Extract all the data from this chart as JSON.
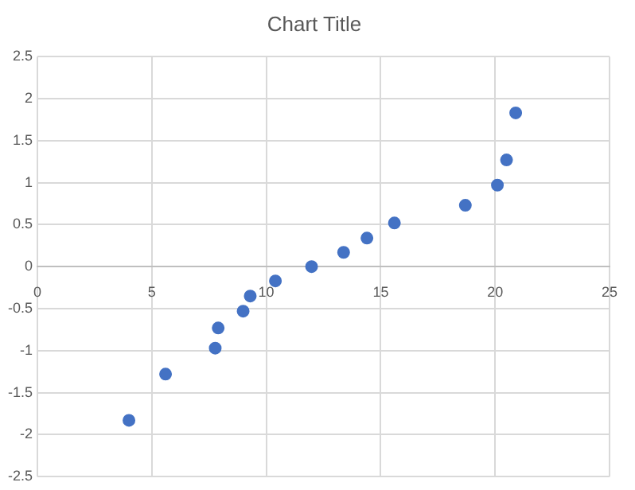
{
  "chart_data": {
    "type": "scatter",
    "title": "Chart Title",
    "x": [
      4.0,
      5.6,
      7.77,
      7.9,
      8.99,
      9.3,
      10.4,
      11.98,
      13.38,
      14.4,
      15.6,
      18.7,
      20.1,
      20.5,
      20.9
    ],
    "series": [
      {
        "color": "#4472c4",
        "values": [
          -1.83,
          -1.28,
          -0.97,
          -0.73,
          -0.53,
          -0.35,
          -0.17,
          0,
          0.17,
          0.34,
          0.52,
          0.73,
          0.97,
          1.27,
          1.83
        ]
      }
    ],
    "xlim": [
      0,
      25
    ],
    "xticks": [
      0,
      5,
      10,
      15,
      20,
      25
    ],
    "ylim": [
      -2.5,
      2.5
    ],
    "yticks": [
      -2.5,
      -2,
      -1.5,
      -1,
      -0.5,
      0,
      0.5,
      1,
      1.5,
      2,
      2.5
    ],
    "grid": true,
    "marker": "circle"
  }
}
